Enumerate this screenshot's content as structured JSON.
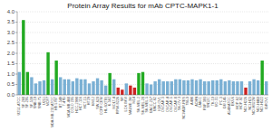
{
  "chart_data": {
    "type": "bar",
    "title": "Protein Array Results for mAb CPTC-MAPK1-1",
    "categories": [
      "U251-ATCC",
      "SF-268",
      "SF-295",
      "SF-539",
      "SNB-19",
      "SNB-75",
      "U251",
      "MCF7",
      "MDA-MB-231/ATCC",
      "HS 578T",
      "BT-549",
      "T-47D",
      "MDA-MB-468",
      "COLO 205",
      "HCC-2998",
      "HCT-116",
      "HCT-15",
      "HT29",
      "KM12",
      "SW-620",
      "CCRF-CEM",
      "HL-60(TB)",
      "K-562",
      "MOLT-4",
      "RPMI-8226",
      "SR",
      "LOX IMVI",
      "MALME-3M",
      "M14",
      "SK-MEL-2",
      "SK-MEL-28",
      "SK-MEL-5",
      "UACC-257",
      "UACC-62",
      "IGR-OV1",
      "OVCAR-3",
      "OVCAR-4",
      "OVCAR-5",
      "OVCAR-8",
      "SK-OV-3",
      "NCI/ADR-RES",
      "786-0",
      "A498",
      "ACHN",
      "CAKI-1",
      "RXF 393",
      "SN12C",
      "TK-10",
      "UO-31",
      "PC-3",
      "DU-145",
      "A549/ATCC",
      "EKVX",
      "HOP-62",
      "HOP-92",
      "NCI-H226",
      "NCI-H23",
      "NCI-H322M",
      "NCI-H460",
      "NCI-H522",
      "IGROV1"
    ],
    "values": [
      1.1,
      3.6,
      1.1,
      0.85,
      0.55,
      0.65,
      0.7,
      2.05,
      0.75,
      1.65,
      0.85,
      0.75,
      0.75,
      0.65,
      0.8,
      0.75,
      0.75,
      0.55,
      0.65,
      0.8,
      0.7,
      0.45,
      1.05,
      0.75,
      0.35,
      0.25,
      0.55,
      0.45,
      0.35,
      1.05,
      1.1,
      0.55,
      0.5,
      0.65,
      0.75,
      0.65,
      0.65,
      0.65,
      0.75,
      0.75,
      0.7,
      0.7,
      0.75,
      0.7,
      0.75,
      0.65,
      0.65,
      0.7,
      0.7,
      0.75,
      0.65,
      0.7,
      0.65,
      0.65,
      0.65,
      0.35,
      0.65,
      0.75,
      0.7,
      1.65,
      0.65
    ],
    "colors": [
      "#7ab0d4",
      "#22aa22",
      "#22aa22",
      "#7ab0d4",
      "#7ab0d4",
      "#7ab0d4",
      "#7ab0d4",
      "#22aa22",
      "#7ab0d4",
      "#22aa22",
      "#7ab0d4",
      "#7ab0d4",
      "#7ab0d4",
      "#7ab0d4",
      "#7ab0d4",
      "#7ab0d4",
      "#7ab0d4",
      "#7ab0d4",
      "#7ab0d4",
      "#7ab0d4",
      "#7ab0d4",
      "#7ab0d4",
      "#22aa22",
      "#7ab0d4",
      "#cc2222",
      "#cc2222",
      "#7ab0d4",
      "#cc2222",
      "#cc2222",
      "#22aa22",
      "#22aa22",
      "#7ab0d4",
      "#7ab0d4",
      "#7ab0d4",
      "#7ab0d4",
      "#7ab0d4",
      "#7ab0d4",
      "#7ab0d4",
      "#7ab0d4",
      "#7ab0d4",
      "#7ab0d4",
      "#7ab0d4",
      "#7ab0d4",
      "#7ab0d4",
      "#7ab0d4",
      "#7ab0d4",
      "#7ab0d4",
      "#7ab0d4",
      "#7ab0d4",
      "#7ab0d4",
      "#7ab0d4",
      "#7ab0d4",
      "#7ab0d4",
      "#7ab0d4",
      "#7ab0d4",
      "#cc2222",
      "#7ab0d4",
      "#7ab0d4",
      "#7ab0d4",
      "#22aa22",
      "#7ab0d4"
    ],
    "ylim": [
      0.0,
      4.0
    ],
    "yticks": [
      {
        "value": 0.0,
        "label": "0.0"
      },
      0.5,
      {
        "value": 1.0,
        "label": "1.0"
      },
      1.5,
      {
        "value": 2.0,
        "label": "2.0"
      },
      2.5,
      {
        "value": 3.0,
        "label": "3.0"
      },
      3.5,
      {
        "value": 4.0,
        "label": "4.0"
      }
    ],
    "grid": true
  }
}
